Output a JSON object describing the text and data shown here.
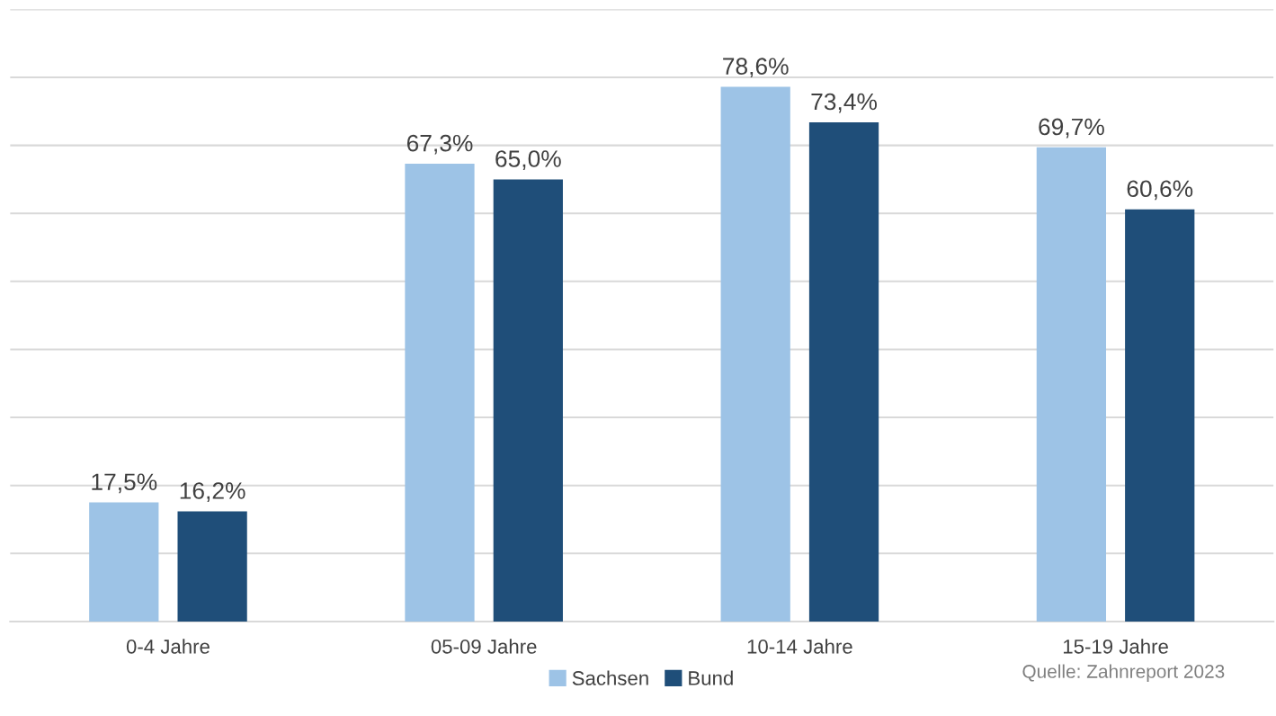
{
  "chart_data": {
    "type": "bar",
    "categories": [
      "0-4 Jahre",
      "05-09 Jahre",
      "10-14 Jahre",
      "15-19 Jahre"
    ],
    "series": [
      {
        "name": "Sachsen",
        "color": "#9dc3e6",
        "values": [
          17.5,
          67.3,
          78.6,
          69.7
        ],
        "value_labels": [
          "17,5%",
          "67,3%",
          "78,6%",
          "69,7%"
        ]
      },
      {
        "name": "Bund",
        "color": "#1f4e79",
        "values": [
          16.2,
          65.0,
          73.4,
          60.6
        ],
        "value_labels": [
          "16,2%",
          "65,0%",
          "73,4%",
          "60,6%"
        ]
      }
    ],
    "ylim": [
      0,
      90
    ],
    "yticks": [
      {
        "value": 0,
        "label": null
      },
      {
        "value": 10,
        "label": null
      },
      {
        "value": 20,
        "label": null
      },
      {
        "value": 30,
        "label": null
      },
      {
        "value": 40,
        "label": null
      },
      {
        "value": 50,
        "label": null
      },
      {
        "value": 60,
        "label": null
      },
      {
        "value": 70,
        "label": null
      },
      {
        "value": 80,
        "label": null
      },
      {
        "value": 90,
        "label": null
      }
    ],
    "grid": "y",
    "legend": "bottom",
    "tick_labels": "x",
    "annotations": [
      "Quelle: Zahnreport 2023"
    ]
  }
}
